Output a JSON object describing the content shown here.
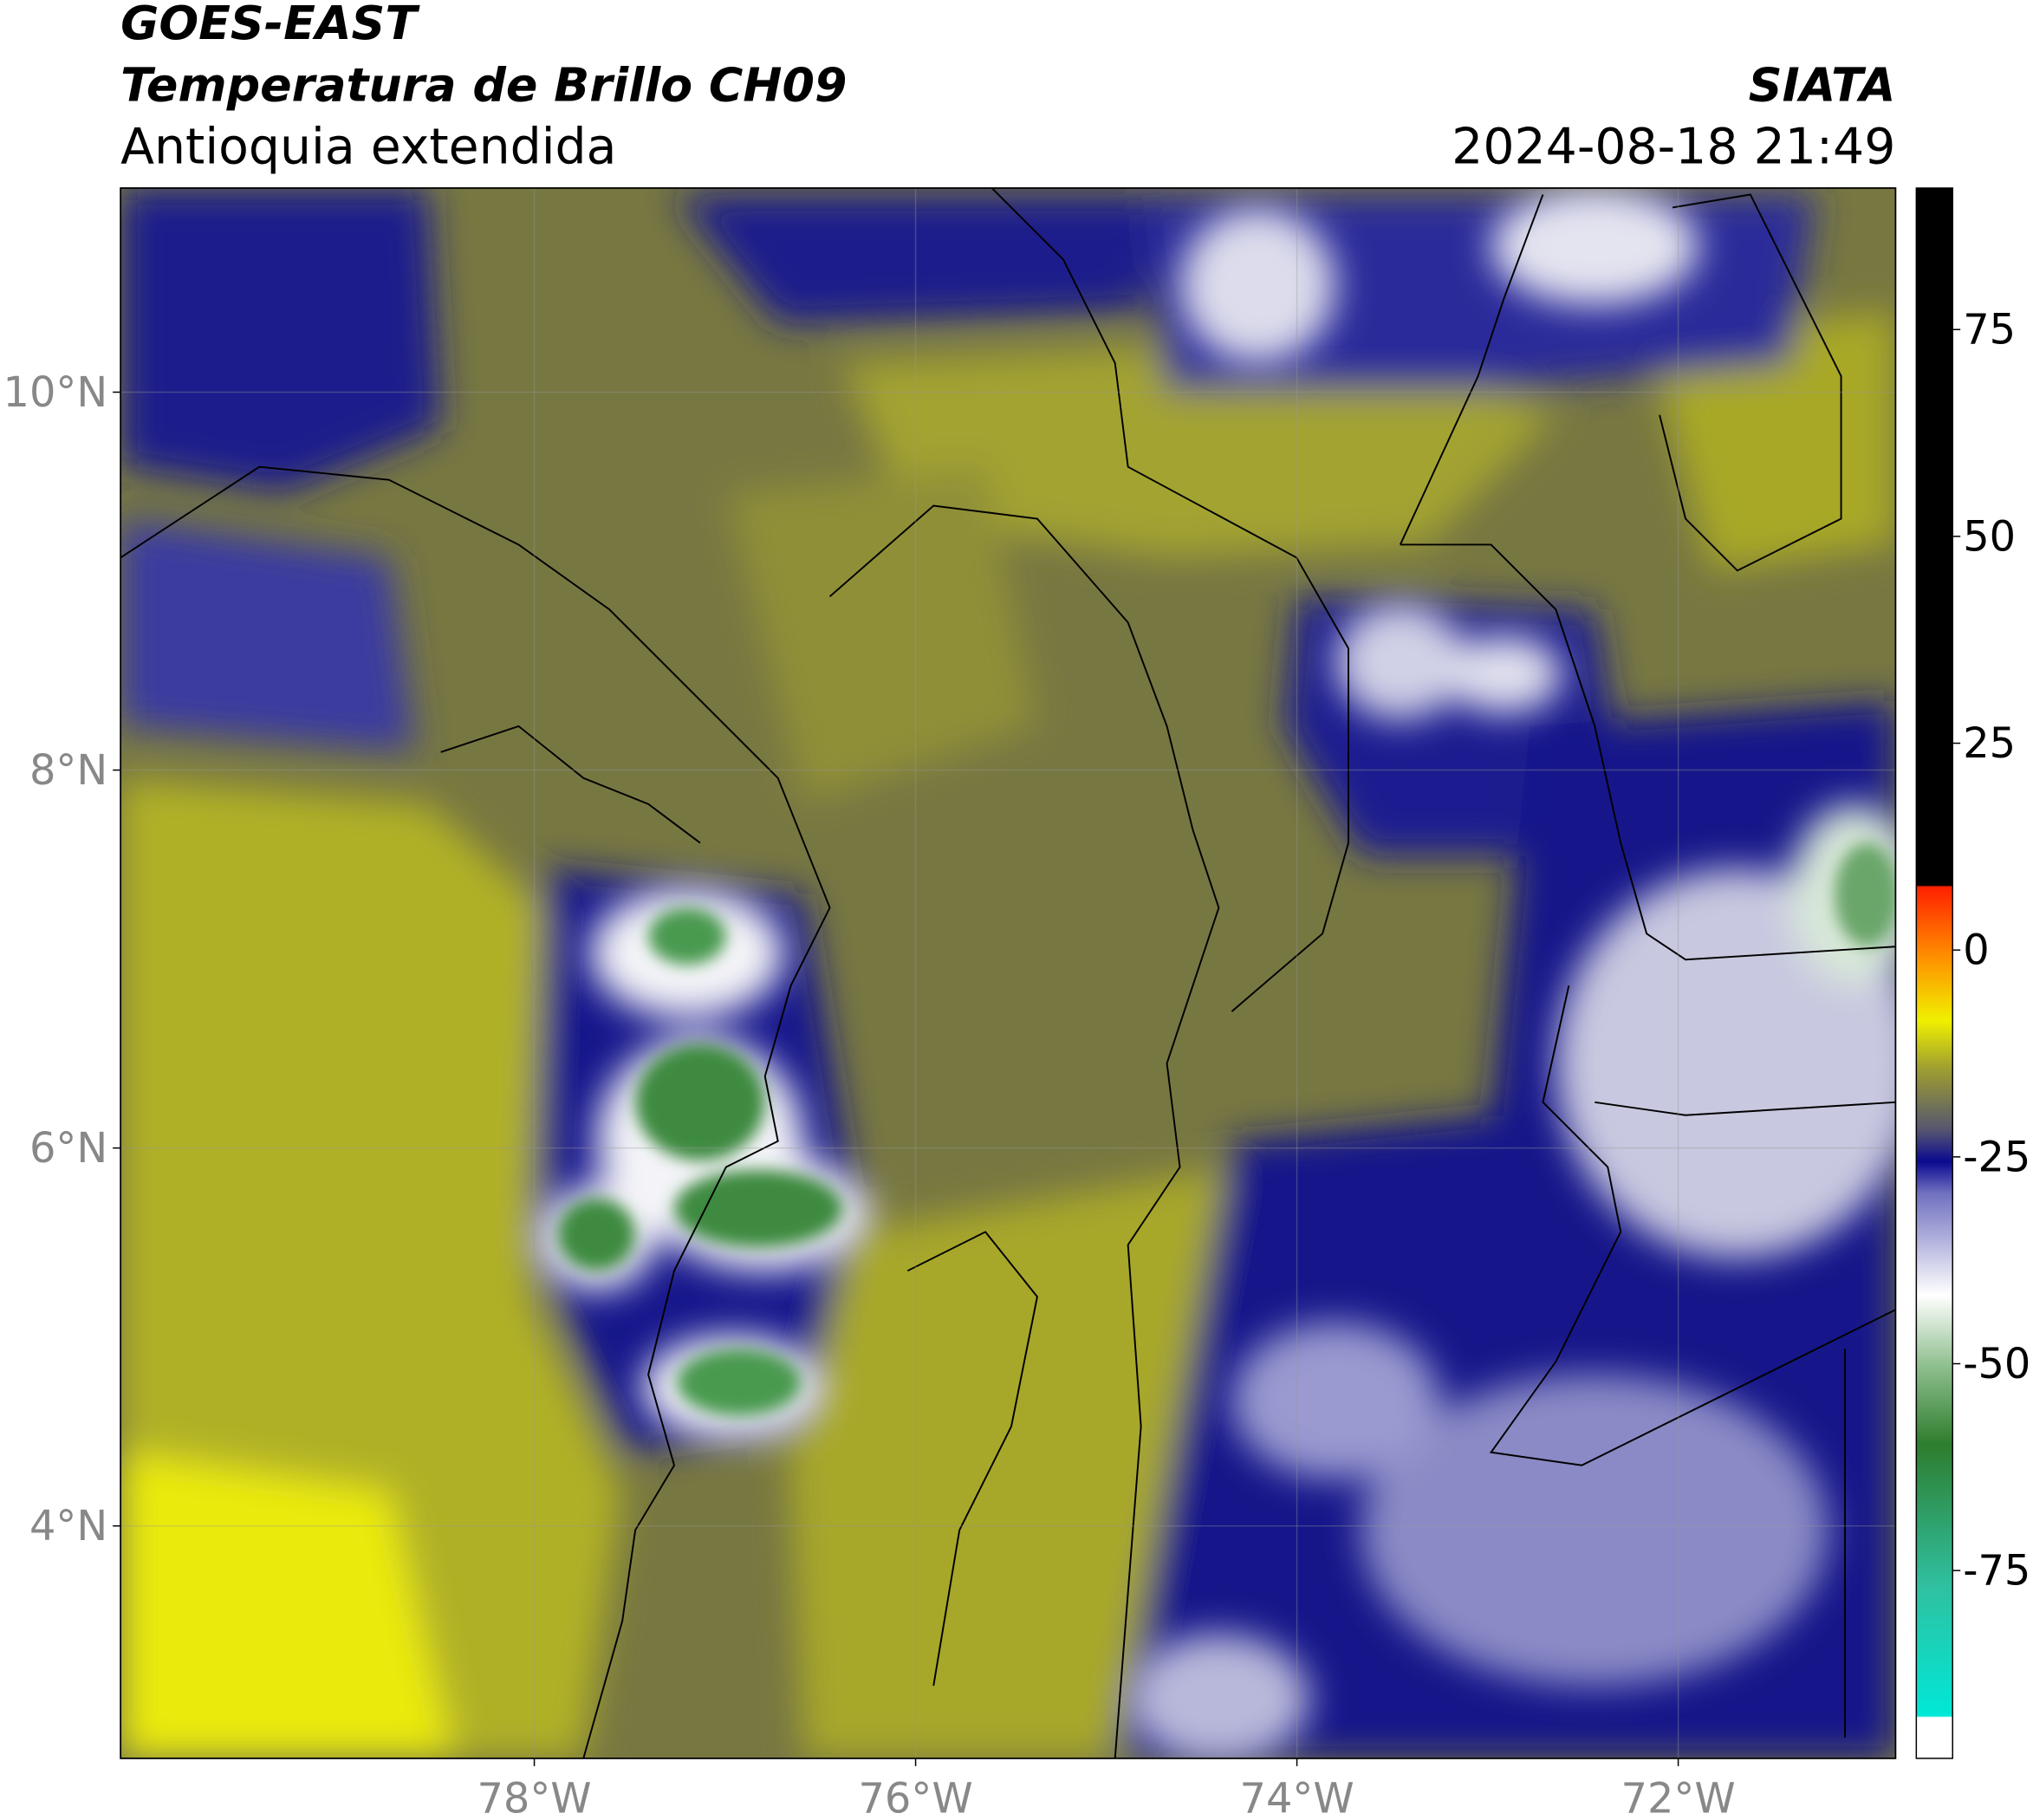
{
  "header": {
    "source": "GOES-EAST",
    "title": "Temperatura de Brillo CH09",
    "region": "Antioquia extendida",
    "agency": "SIATA",
    "datetime": "2024-08-18 21:49"
  },
  "map": {
    "xlim": [
      -80.17,
      -70.86
    ],
    "ylim": [
      2.77,
      11.08
    ],
    "xticks": [
      {
        "value": -78,
        "label": "78°W"
      },
      {
        "value": -76,
        "label": "76°W"
      },
      {
        "value": -74,
        "label": "74°W"
      },
      {
        "value": -72,
        "label": "72°W"
      }
    ],
    "yticks": [
      {
        "value": 4,
        "label": "4°N"
      },
      {
        "value": 6,
        "label": "6°N"
      },
      {
        "value": 8,
        "label": "8°N"
      },
      {
        "value": 10,
        "label": "10°N"
      }
    ],
    "grid": true
  },
  "colorbar": {
    "ylim": [
      -97.7,
      92.1
    ],
    "yticks": [
      75,
      50,
      25,
      0,
      -25,
      -50,
      -75
    ]
  }
}
